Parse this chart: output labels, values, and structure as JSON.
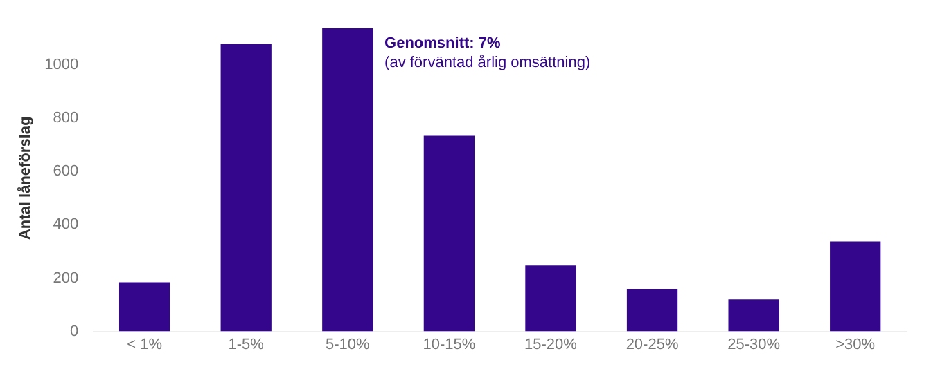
{
  "chart_data": {
    "type": "bar",
    "ylabel": "Antal låneförslag",
    "categories": [
      "< 1%",
      "1-5%",
      "5-10%",
      "10-15%",
      "15-20%",
      "20-25%",
      "25-30%",
      ">30%"
    ],
    "values": [
      184,
      1078,
      1137,
      734,
      247,
      160,
      120,
      337
    ],
    "color": "#33068c",
    "ylim": [
      0,
      1150
    ],
    "yticks": [
      0,
      200,
      400,
      600,
      800,
      1000
    ],
    "grid": false,
    "legend": false,
    "annotations": [
      "Genomsnitt: 7%",
      "(av förväntad årlig omsättning)"
    ]
  }
}
